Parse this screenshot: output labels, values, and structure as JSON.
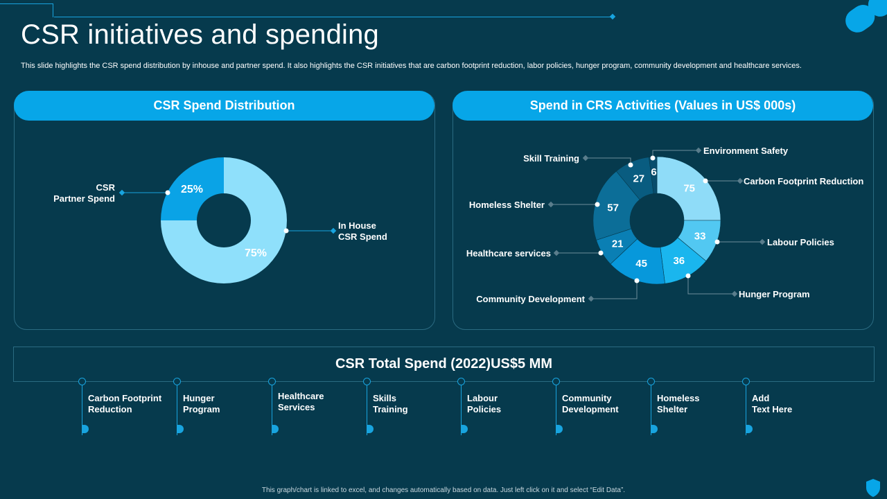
{
  "slide": {
    "title": "CSR initiatives and spending",
    "subtitle": "This slide highlights the CSR spend distribution by inhouse and partner spend. It also highlights the CSR initiatives that are carbon footprint reduction, labor policies, hunger program, community development and healthcare services.",
    "footer": "This graph/chart is linked to excel, and changes automatically based on data. Just left click on it and select “Edit Data”."
  },
  "colors": {
    "background": "#063a4d",
    "accent": "#07a6e8",
    "line": "#18a4df"
  },
  "chart_data": [
    {
      "type": "pie",
      "title": "CSR Spend Distribution",
      "categories": [
        "CSR Partner Spend",
        "In House CSR Spend"
      ],
      "values": [
        25,
        75
      ],
      "value_labels": [
        "25%",
        "75%"
      ],
      "label_lines": [
        [
          "CSR",
          "Partner Spend"
        ],
        [
          "In House",
          "CSR Spend"
        ]
      ],
      "colors": [
        "#0aa3e6",
        "#8fe0fb"
      ]
    },
    {
      "type": "pie",
      "title": "Spend in CRS Activities (Values in US$ 000s)",
      "categories": [
        "Carbon Footprint Reduction",
        "Labour Policies",
        "Hunger Program",
        "Community Development",
        "Healthcare services",
        "Homeless Shelter",
        "Skill Training",
        "Environment Safety"
      ],
      "values": [
        75,
        33,
        36,
        45,
        21,
        57,
        27,
        6
      ],
      "colors": [
        "#8fdcf8",
        "#52c8f2",
        "#1ab6ee",
        "#0798db",
        "#0a7fb4",
        "#0c6e98",
        "#095c80",
        "#084d6c"
      ]
    }
  ],
  "total": {
    "title": "CSR Total Spend (2022)US$5 MM"
  },
  "initiatives": [
    "Carbon Footprint\nReduction",
    "Hunger\nProgram",
    "Healthcare\nServices",
    "Skills\nTraining",
    "Labour\nPolicies",
    "Community\nDevelopment",
    "Homeless\nShelter",
    "Add\nText Here"
  ]
}
